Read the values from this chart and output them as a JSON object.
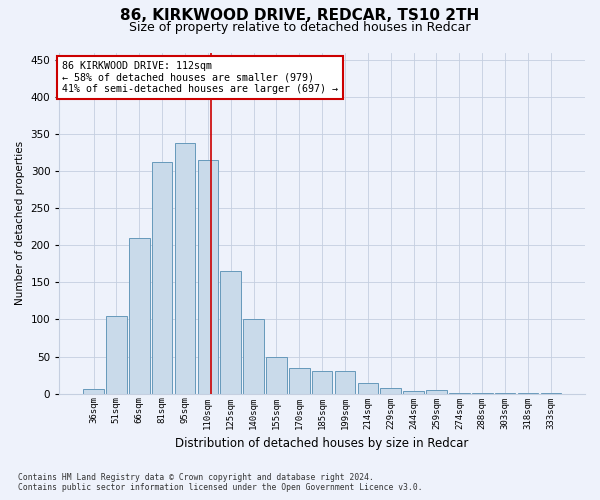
{
  "title": "86, KIRKWOOD DRIVE, REDCAR, TS10 2TH",
  "subtitle": "Size of property relative to detached houses in Redcar",
  "xlabel": "Distribution of detached houses by size in Redcar",
  "ylabel": "Number of detached properties",
  "categories": [
    "36sqm",
    "51sqm",
    "66sqm",
    "81sqm",
    "95sqm",
    "110sqm",
    "125sqm",
    "140sqm",
    "155sqm",
    "170sqm",
    "185sqm",
    "199sqm",
    "214sqm",
    "229sqm",
    "244sqm",
    "259sqm",
    "274sqm",
    "288sqm",
    "303sqm",
    "318sqm",
    "333sqm"
  ],
  "values": [
    6,
    105,
    210,
    313,
    338,
    315,
    165,
    100,
    50,
    35,
    30,
    30,
    15,
    7,
    3,
    5,
    1,
    1,
    1,
    1,
    1
  ],
  "bar_color": "#c9daea",
  "bar_edge_color": "#6699bb",
  "property_line_label": "86 KIRKWOOD DRIVE: 112sqm",
  "annotation_line1": "← 58% of detached houses are smaller (979)",
  "annotation_line2": "41% of semi-detached houses are larger (697) →",
  "property_line_color": "#cc0000",
  "annotation_box_color": "#ffffff",
  "annotation_box_edge": "#cc0000",
  "ylim": [
    0,
    460
  ],
  "yticks": [
    0,
    50,
    100,
    150,
    200,
    250,
    300,
    350,
    400,
    450
  ],
  "footnote1": "Contains HM Land Registry data © Crown copyright and database right 2024.",
  "footnote2": "Contains public sector information licensed under the Open Government Licence v3.0.",
  "background_color": "#eef2fb",
  "grid_color": "#c5cfe0",
  "title_fontsize": 11,
  "subtitle_fontsize": 9,
  "bar_width": 0.9
}
